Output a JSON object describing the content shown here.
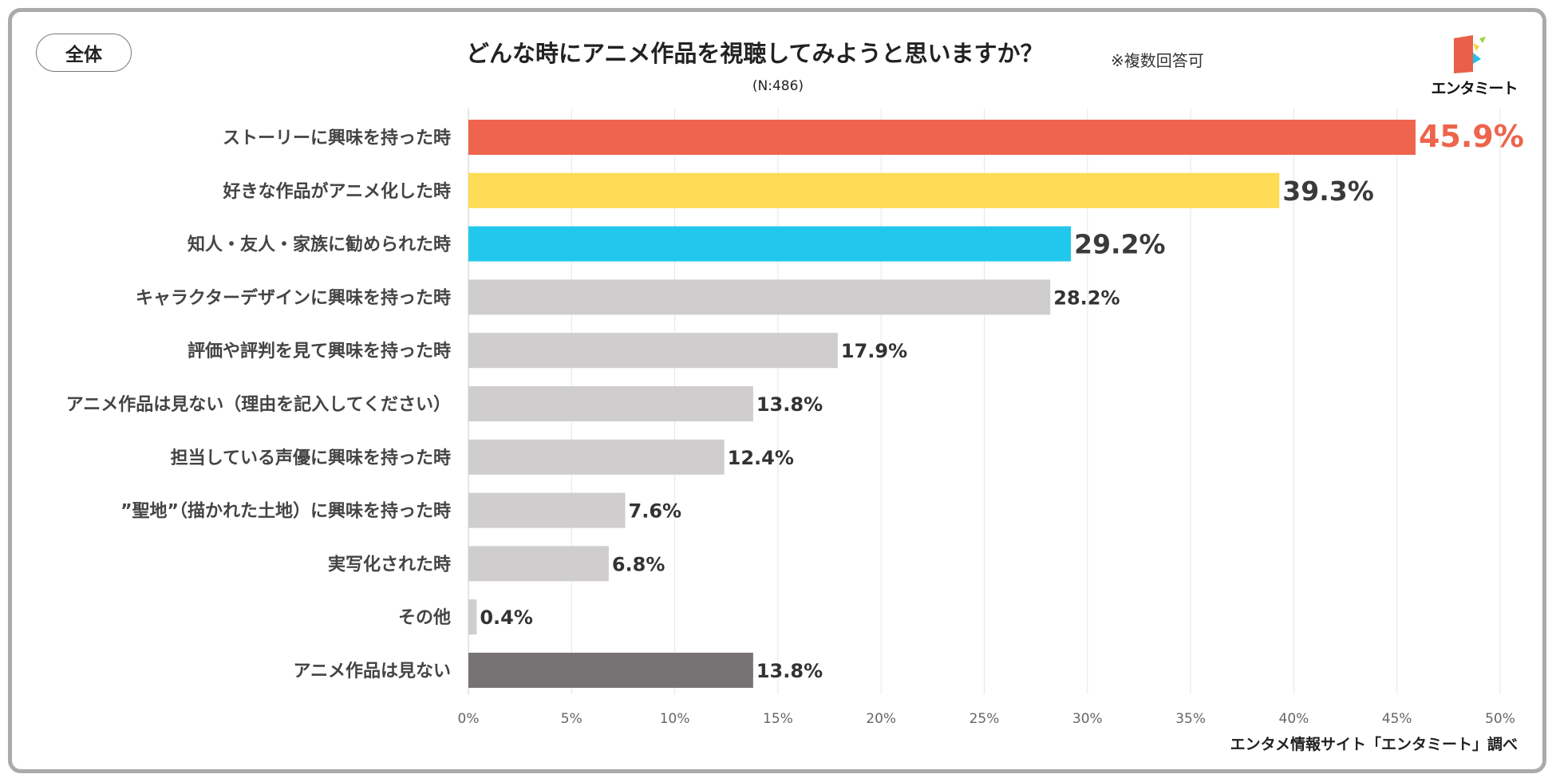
{
  "tag": "全体",
  "title": "どんな時にアニメ作品を視聴してみようと思いますか？",
  "note": "※複数回答可",
  "sample": "(N:486)",
  "logo": {
    "text": "エンタミート",
    "icon": "entameet-logo-icon",
    "colors": [
      "#e8604a",
      "#f6d13a",
      "#25c1e8",
      "#9bd23c"
    ]
  },
  "source": "エンタメ情報サイト「エンタミート」調べ",
  "chart_data": {
    "type": "bar",
    "orientation": "horizontal",
    "title": "どんな時にアニメ作品を視聴してみようと思いますか？",
    "xlabel": "",
    "ylabel": "",
    "xlim": [
      0,
      50
    ],
    "xticks": [
      0,
      5,
      10,
      15,
      20,
      25,
      30,
      35,
      40,
      45,
      50
    ],
    "xtick_labels": [
      "0%",
      "5%",
      "10%",
      "15%",
      "20%",
      "25%",
      "30%",
      "35%",
      "40%",
      "45%",
      "50%"
    ],
    "grid": true,
    "categories": [
      "ストーリーに興味を持った時",
      "好きな作品がアニメ化した時",
      "知人・友人・家族に勧められた時",
      "キャラクターデザインに興味を持った時",
      "評価や評判を見て興味を持った時",
      "アニメ作品は見ない（理由を記入してください）",
      "担当している声優に興味を持った時",
      "”聖地”（描かれた土地）に興味を持った時",
      "実写化された時",
      "その他",
      "アニメ作品は見ない"
    ],
    "values": [
      45.9,
      39.3,
      29.2,
      28.2,
      17.9,
      13.8,
      12.4,
      7.6,
      6.8,
      0.4,
      13.8
    ],
    "value_labels": [
      "45.9%",
      "39.3%",
      "29.2%",
      "28.2%",
      "17.9%",
      "13.8%",
      "12.4%",
      "7.6%",
      "6.8%",
      "0.4%",
      "13.8%"
    ],
    "bar_colors": [
      "#ee644c",
      "#ffdc55",
      "#22c8ec",
      "#cfcdce",
      "#cfcdce",
      "#cfcdce",
      "#cfcdce",
      "#cfcdce",
      "#cfcdce",
      "#cfcdce",
      "#777273"
    ],
    "label_colors": [
      "#ee644c",
      "#3a3a3a",
      "#3a3a3a",
      "#333333",
      "#333333",
      "#333333",
      "#333333",
      "#333333",
      "#333333",
      "#333333",
      "#333333"
    ],
    "label_emphasis": [
      "large",
      "large",
      "large",
      "normal",
      "normal",
      "normal",
      "normal",
      "normal",
      "normal",
      "normal",
      "normal"
    ]
  }
}
